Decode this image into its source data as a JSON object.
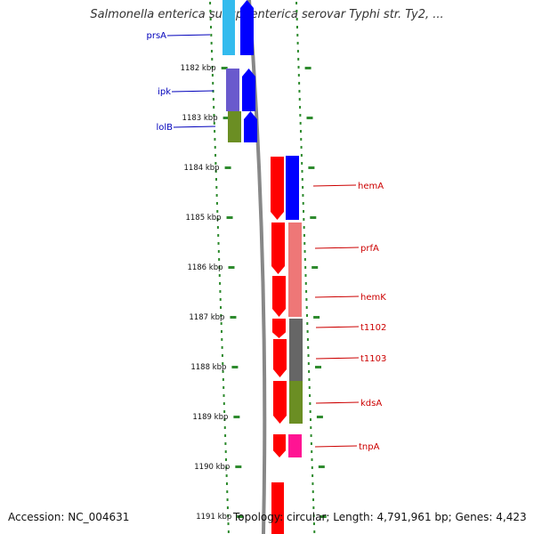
{
  "title": "Salmonella enterica subsp. enterica serovar Typhi str. Ty2, ...",
  "footer": {
    "accession": "Accession: NC_004631",
    "topology": "Topology: circular; Length: 4,791,961 bp; Genes: 4,423"
  },
  "colors": {
    "strand": "#ff0000",
    "blue": "#0000ff",
    "light_blue": "#33bbee",
    "slate_blue": "#6a5acd",
    "olive": "#6b8e23",
    "salmon": "#ee7777",
    "gray": "#666666",
    "pink": "#ff1493",
    "tick": "#2e8b2e",
    "backbone": "#888888"
  },
  "ticks": [
    "1182 kbp",
    "1183 kbp",
    "1184 kbp",
    "1185 kbp",
    "1186 kbp",
    "1187 kbp",
    "1188 kbp",
    "1189 kbp",
    "1190 kbp",
    "1191 kbp"
  ],
  "genes_left": [
    {
      "label": "prsA"
    },
    {
      "label": "ipk"
    },
    {
      "label": "lolB"
    }
  ],
  "genes_right": [
    {
      "label": "hemA"
    },
    {
      "label": "prfA"
    },
    {
      "label": "hemK"
    },
    {
      "label": "t1102"
    },
    {
      "label": "t1103"
    },
    {
      "label": "kdsA"
    },
    {
      "label": "tnpA"
    }
  ]
}
